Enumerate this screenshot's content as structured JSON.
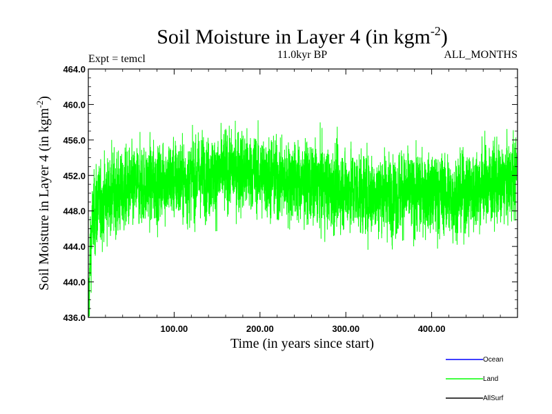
{
  "chart_data": {
    "type": "line",
    "title": "Soil Moisture in Layer 4 (in kgm",
    "title_sup": "-2",
    "title_close": ")",
    "subtitle_left": "Expt = temcl",
    "subtitle_center": "11.0kyr BP",
    "subtitle_right": "ALL_MONTHS",
    "xlabel": "Time (in years since start)",
    "ylabel": "Soil Moisture in Layer 4 (in kgm",
    "ylabel_sup": "-2",
    "ylabel_close": ")",
    "xlim": [
      0,
      500
    ],
    "ylim": [
      436,
      464
    ],
    "x_ticks": [
      100,
      200,
      300,
      400
    ],
    "x_tick_labels": [
      "100.00",
      "200.00",
      "300.00",
      "400.00"
    ],
    "y_ticks": [
      436,
      440,
      444,
      448,
      452,
      456,
      460,
      464
    ],
    "y_tick_labels": [
      "436.0",
      "440.0",
      "444.0",
      "448.0",
      "452.0",
      "456.0",
      "460.0",
      "464.0"
    ],
    "series": [
      {
        "name": "Ocean",
        "color": "#0000ff",
        "values": []
      },
      {
        "name": "Land",
        "color": "#00ff00",
        "x": [
          0,
          1,
          2,
          4,
          6,
          10,
          15,
          20,
          30,
          40,
          50,
          60,
          70,
          80,
          90,
          100,
          110,
          120,
          130,
          133,
          140,
          150,
          160,
          170,
          180,
          185,
          190,
          200,
          210,
          220,
          230,
          240,
          250,
          260,
          270,
          280,
          290,
          300,
          310,
          320,
          330,
          340,
          350,
          360,
          370,
          380,
          390,
          400,
          410,
          420,
          425,
          430,
          440,
          450,
          460,
          470,
          480,
          490,
          498,
          499
        ],
        "values": [
          437,
          439,
          443,
          446,
          447.5,
          448.5,
          449,
          449.5,
          450,
          450,
          450.5,
          451,
          451,
          451,
          451.5,
          451.5,
          451.5,
          451.5,
          452,
          452,
          452,
          452,
          452.5,
          452.5,
          452.5,
          452.5,
          452.5,
          452,
          452,
          451.5,
          451.5,
          451.5,
          451,
          451,
          451,
          450.5,
          450.5,
          450.5,
          450.5,
          450,
          450,
          450,
          450,
          450,
          450,
          450,
          450,
          450,
          450,
          449.5,
          449.5,
          450,
          450,
          450.5,
          451,
          451,
          451,
          451.5,
          452,
          453
        ],
        "amplitude": 3.2
      },
      {
        "name": "AllSurf",
        "color": "#000000",
        "values": []
      }
    ],
    "legend_position": "bottom-right",
    "grid": false
  }
}
